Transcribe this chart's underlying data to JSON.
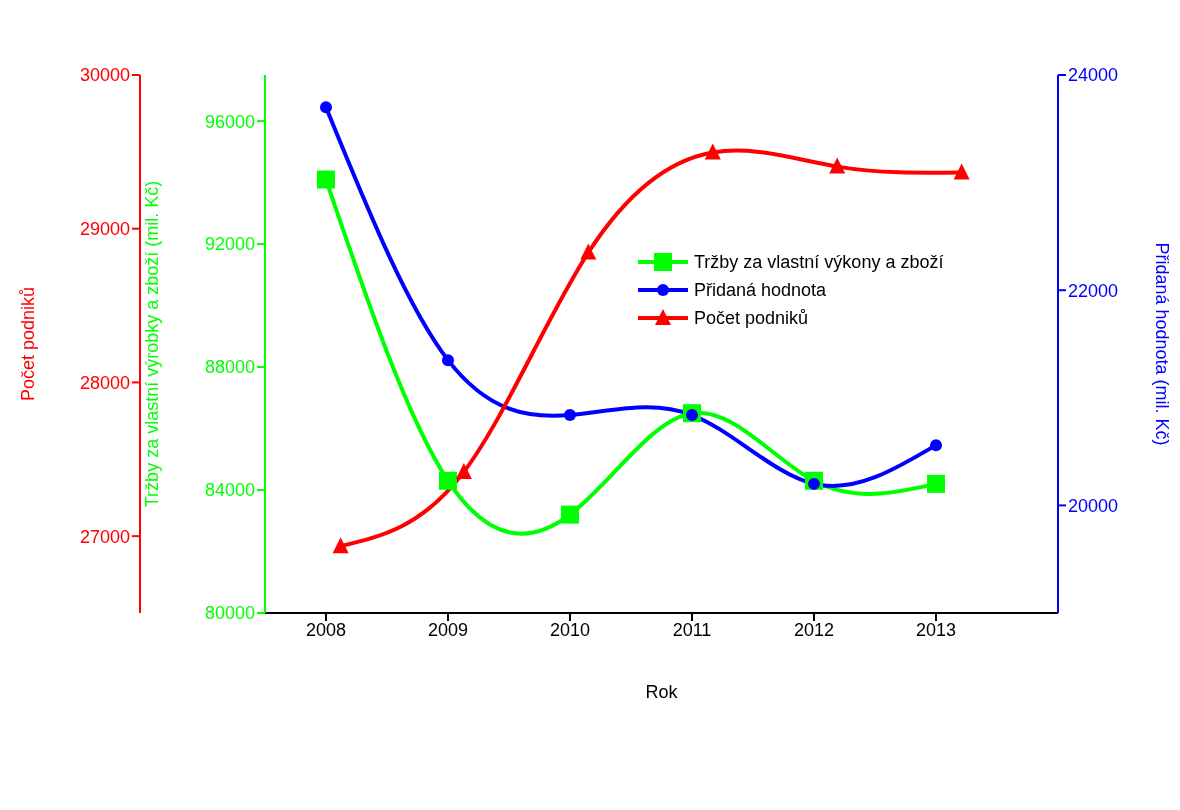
{
  "chart_data": {
    "type": "line",
    "xlabel": "Rok",
    "ylabel": "Tržby za vlastní výrobky a zboží (mil. Kč)",
    "y2label": "Přidaná hodnota (mil. Kč)",
    "y3label": "Počet podniků",
    "xlim": [
      2007.5,
      2014
    ],
    "xticks": [
      2008,
      2009,
      2010,
      2011,
      2012,
      2013
    ],
    "ylim": [
      80000,
      97500
    ],
    "yticks": [
      80000,
      84000,
      88000,
      92000,
      96000
    ],
    "y2lim": [
      19000,
      24000
    ],
    "y2ticks": [
      20000,
      22000,
      24000
    ],
    "y3lim": [
      26500,
      30000
    ],
    "y3ticks": [
      27000,
      28000,
      29000,
      30000
    ],
    "legend": "top right",
    "line_style": "solid",
    "series": [
      {
        "name": "Tržby za vlastní výkony a zboží",
        "color": "#00ff00",
        "marker": "square",
        "x": [
          2008,
          2009,
          2010,
          2011,
          2012,
          2013
        ],
        "values": [
          94100,
          84300,
          83200,
          86500,
          84300,
          84200
        ]
      },
      {
        "name": "Přidaná hodnota",
        "color": "#0000ff",
        "marker": "circle",
        "axis": "y2",
        "x": [
          2008,
          2009,
          2010,
          2011,
          2012,
          2013
        ],
        "values": [
          23700,
          21350,
          20840,
          20840,
          20200,
          20560
        ]
      },
      {
        "name": "Počet podniků",
        "color": "#ff0000",
        "marker": "triangle",
        "axis": "y3",
        "x": [
          2008.12,
          2009.13,
          2010.15,
          2011.17,
          2012.19,
          2013.21
        ],
        "values": [
          26935,
          27418,
          28845,
          29496,
          29404,
          29366
        ]
      }
    ]
  }
}
